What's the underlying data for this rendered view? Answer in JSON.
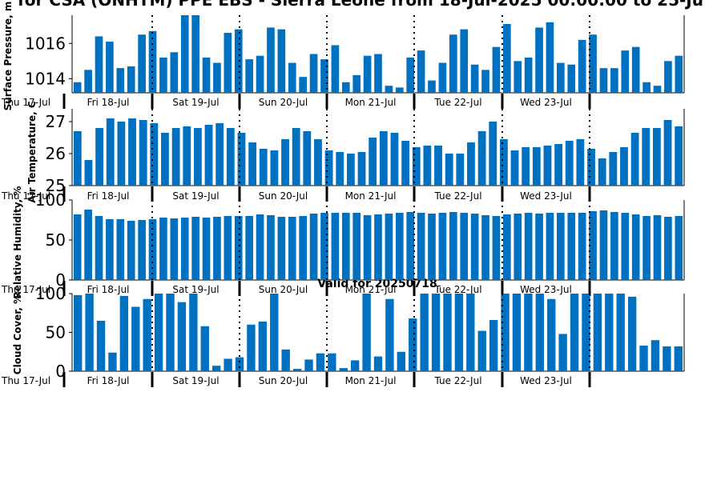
{
  "title": "for CSA (ONHTM) PPE EBS - Sierra Leone from 18-Jul-2025 00:00:00 to 25-Ju",
  "subtitle": "Valid for 20250718",
  "colors": {
    "bar": "#0070c0",
    "axis": "#000000"
  },
  "chart_data": [
    {
      "type": "bar",
      "ylabel": "Surface Pressure, m",
      "ylim": [
        1013.2,
        1017.6
      ],
      "yticks": [
        1014,
        1016
      ],
      "values": [
        1013.8,
        1014.5,
        1016.4,
        1016.1,
        1014.6,
        1014.7,
        1016.5,
        1016.7,
        1015.2,
        1015.5,
        1017.7,
        1017.7,
        1015.2,
        1014.9,
        1016.6,
        1016.8,
        1015.1,
        1015.3,
        1016.9,
        1016.8,
        1014.9,
        1014.1,
        1015.4,
        1015.1,
        1015.9,
        1013.8,
        1014.2,
        1015.3,
        1015.4,
        1013.6,
        1013.5,
        1015.2,
        1015.6,
        1013.9,
        1014.9,
        1016.5,
        1016.8,
        1014.8,
        1014.5,
        1015.8,
        1017.1,
        1015.0,
        1015.2,
        1016.9,
        1017.2,
        1014.9,
        1014.8,
        1016.2,
        1016.5,
        1014.6,
        1014.6,
        1015.6,
        1015.8,
        1013.8,
        1013.6,
        1015.0,
        1015.3
      ]
    },
    {
      "type": "bar",
      "ylabel": "Air Temperature, C",
      "ylim": [
        25,
        27.4
      ],
      "yticks": [
        25,
        26,
        27
      ],
      "values": [
        26.7,
        25.8,
        26.8,
        27.1,
        27.0,
        27.1,
        27.05,
        26.95,
        26.65,
        26.8,
        26.85,
        26.8,
        26.9,
        26.95,
        26.8,
        26.65,
        26.35,
        26.15,
        26.1,
        26.45,
        26.8,
        26.7,
        26.45,
        26.1,
        26.05,
        26.0,
        26.05,
        26.5,
        26.7,
        26.65,
        26.4,
        26.2,
        26.25,
        26.25,
        26.0,
        26.0,
        26.35,
        26.7,
        27.0,
        26.45,
        26.1,
        26.2,
        26.2,
        26.25,
        26.3,
        26.4,
        26.45,
        26.15,
        25.85,
        26.05,
        26.2,
        26.65,
        26.8,
        26.8,
        27.05,
        26.85
      ]
    },
    {
      "type": "bar",
      "ylabel": "Relative Humidity, %",
      "ylim": [
        0,
        100
      ],
      "yticks": [
        0,
        50,
        100
      ],
      "values": [
        82,
        88,
        80,
        76,
        76,
        74,
        75,
        76,
        78,
        77,
        78,
        79,
        78,
        79,
        80,
        80,
        80,
        82,
        81,
        79,
        79,
        80,
        83,
        84,
        84,
        84,
        84,
        81,
        82,
        83,
        84,
        85,
        84,
        83,
        84,
        85,
        84,
        83,
        81,
        80,
        82,
        83,
        84,
        83,
        84,
        84,
        84,
        84,
        86,
        87,
        85,
        84,
        82,
        80,
        81,
        79,
        80
      ]
    },
    {
      "type": "bar",
      "ylabel": "Cloud Cover, %",
      "ylim": [
        0,
        100
      ],
      "yticks": [
        0,
        50,
        100
      ],
      "values": [
        98,
        100,
        65,
        24,
        97,
        83,
        93,
        100,
        100,
        89,
        100,
        58,
        7,
        16,
        18,
        60,
        64,
        100,
        28,
        3,
        15,
        23,
        23,
        4,
        14,
        100,
        19,
        93,
        25,
        68,
        100,
        100,
        100,
        100,
        100,
        52,
        66,
        100,
        100,
        100,
        100,
        93,
        48,
        100,
        100,
        100,
        100,
        100,
        96,
        33,
        40,
        32,
        32
      ]
    }
  ],
  "xaxis": {
    "start_label": "Thu 17-Jul",
    "days": [
      "Fri 18-Jul",
      "Sat 19-Jul",
      "Sun 20-Jul",
      "Mon 21-Jul",
      "Tue 22-Jul",
      "Wed 23-Jul"
    ]
  }
}
